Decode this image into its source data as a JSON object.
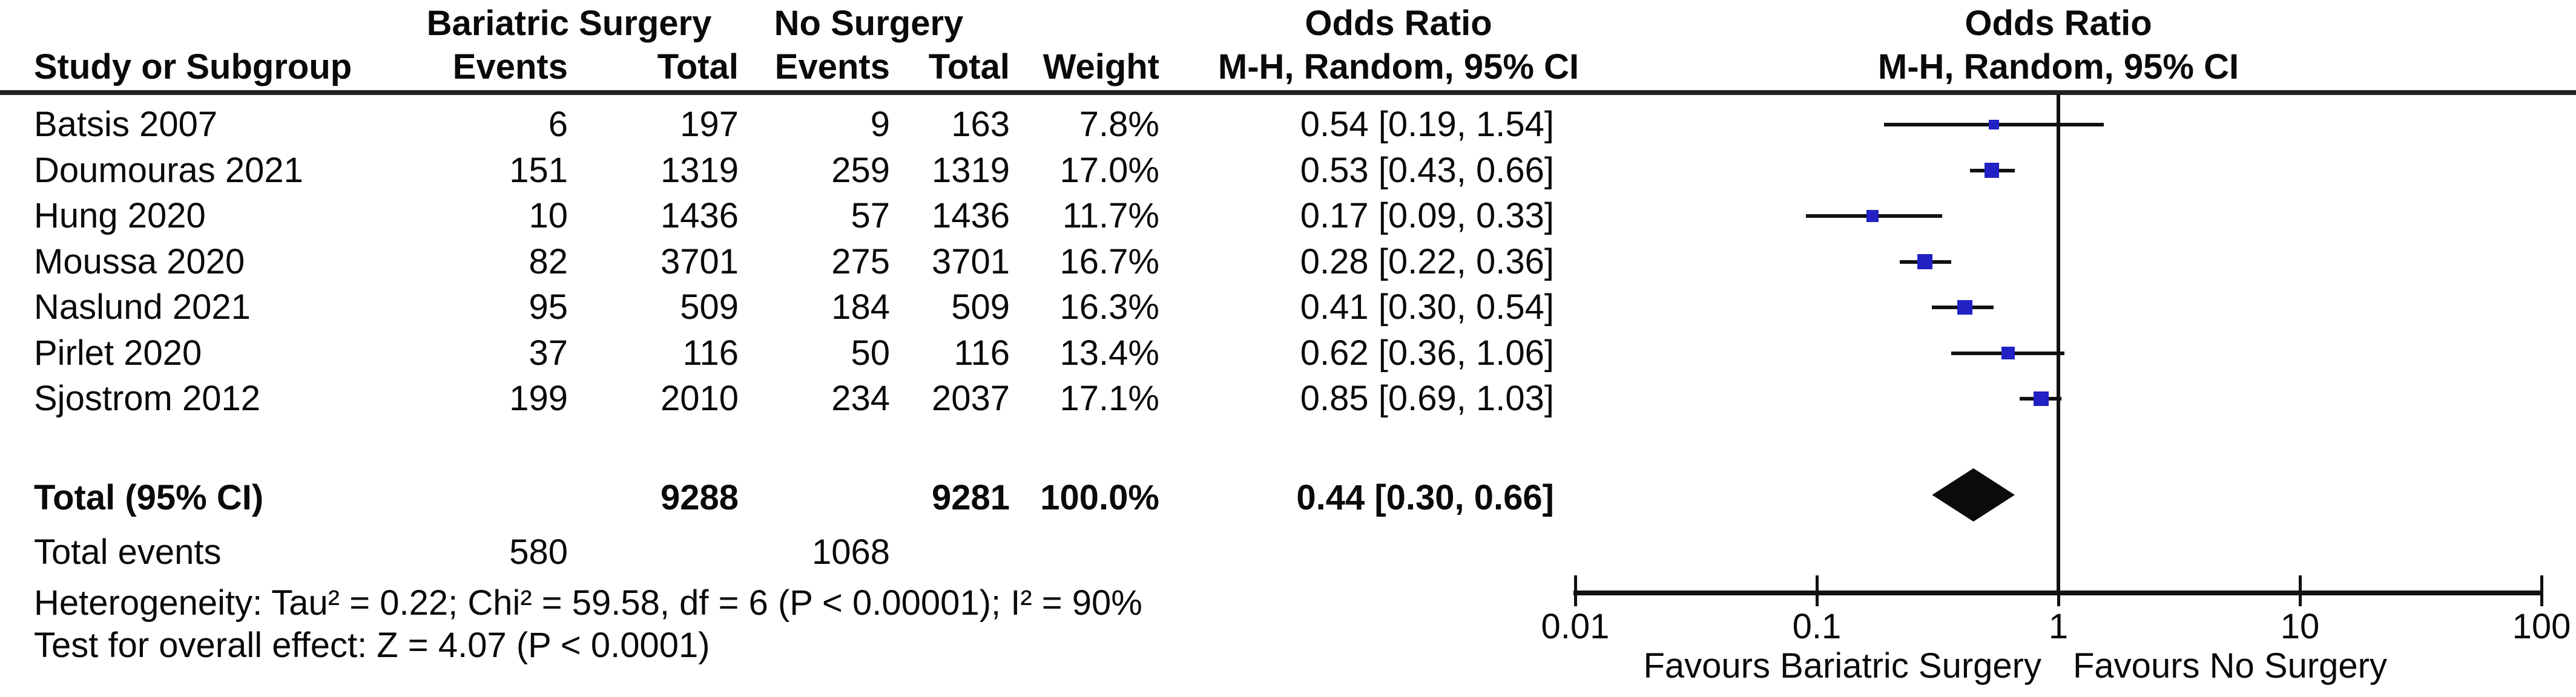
{
  "header": {
    "group_surgery": "Bariatric Surgery",
    "group_control": "No Surgery",
    "odds_ratio_left": "Odds Ratio",
    "odds_ratio_right": "Odds Ratio",
    "method_left": "M-H, Random, 95% CI",
    "method_right": "M-H, Random, 95% CI",
    "study": "Study or Subgroup",
    "events": "Events",
    "total": "Total",
    "weight": "Weight"
  },
  "footer": {
    "total_events_label": "Total events",
    "surgery_total_events": "580",
    "control_total_events": "1068",
    "heterogeneity": "Heterogeneity: Tau² = 0.22; Chi² = 59.58, df = 6 (P < 0.00001); I² = 90%",
    "overall_effect": "Test for overall effect: Z = 4.07 (P < 0.0001)"
  },
  "axis": {
    "ticks": [
      {
        "value": 0.01,
        "label": "0.01"
      },
      {
        "value": 0.1,
        "label": "0.1"
      },
      {
        "value": 1,
        "label": "1"
      },
      {
        "value": 10,
        "label": "10"
      },
      {
        "value": 100,
        "label": "100"
      }
    ],
    "favours_left": "Favours Bariatric Surgery",
    "favours_right": "Favours No Surgery"
  },
  "colors": {
    "marker_blue": "#2121C4",
    "diamond_black": "#0b0b0b",
    "line_black": "#111111"
  },
  "chart_data": {
    "type": "scatter",
    "variant": "forest_plot",
    "effect_measure": "Odds Ratio",
    "method": "M-H, Random, 95% CI",
    "x_scale": "log10",
    "x_range": [
      0.01,
      100
    ],
    "x_ticks": [
      0.01,
      0.1,
      1,
      10,
      100
    ],
    "studies": [
      {
        "name": "Batsis 2007",
        "surgery_events": "6",
        "surgery_total": "197",
        "control_events": "9",
        "control_total": "163",
        "weight_text": "7.8%",
        "weight_pct": 7.8,
        "or": 0.54,
        "ci_low": 0.19,
        "ci_high": 1.54,
        "ci_text": "0.54 [0.19, 1.54]"
      },
      {
        "name": "Doumouras 2021",
        "surgery_events": "151",
        "surgery_total": "1319",
        "control_events": "259",
        "control_total": "1319",
        "weight_text": "17.0%",
        "weight_pct": 17.0,
        "or": 0.53,
        "ci_low": 0.43,
        "ci_high": 0.66,
        "ci_text": "0.53 [0.43, 0.66]"
      },
      {
        "name": "Hung 2020",
        "surgery_events": "10",
        "surgery_total": "1436",
        "control_events": "57",
        "control_total": "1436",
        "weight_text": "11.7%",
        "weight_pct": 11.7,
        "or": 0.17,
        "ci_low": 0.09,
        "ci_high": 0.33,
        "ci_text": "0.17 [0.09, 0.33]"
      },
      {
        "name": "Moussa 2020",
        "surgery_events": "82",
        "surgery_total": "3701",
        "control_events": "275",
        "control_total": "3701",
        "weight_text": "16.7%",
        "weight_pct": 16.7,
        "or": 0.28,
        "ci_low": 0.22,
        "ci_high": 0.36,
        "ci_text": "0.28 [0.22, 0.36]"
      },
      {
        "name": "Naslund 2021",
        "surgery_events": "95",
        "surgery_total": "509",
        "control_events": "184",
        "control_total": "509",
        "weight_text": "16.3%",
        "weight_pct": 16.3,
        "or": 0.41,
        "ci_low": 0.3,
        "ci_high": 0.54,
        "ci_text": "0.41 [0.30, 0.54]"
      },
      {
        "name": "Pirlet 2020",
        "surgery_events": "37",
        "surgery_total": "116",
        "control_events": "50",
        "control_total": "116",
        "weight_text": "13.4%",
        "weight_pct": 13.4,
        "or": 0.62,
        "ci_low": 0.36,
        "ci_high": 1.06,
        "ci_text": "0.62 [0.36, 1.06]"
      },
      {
        "name": "Sjostrom 2012",
        "surgery_events": "199",
        "surgery_total": "2010",
        "control_events": "234",
        "control_total": "2037",
        "weight_text": "17.1%",
        "weight_pct": 17.1,
        "or": 0.85,
        "ci_low": 0.69,
        "ci_high": 1.03,
        "ci_text": "0.85 [0.69, 1.03]"
      }
    ],
    "total": {
      "label": "Total (95% CI)",
      "surgery_total": "9288",
      "control_total": "9281",
      "weight_text": "100.0%",
      "or": 0.44,
      "ci_low": 0.3,
      "ci_high": 0.66,
      "ci_text": "0.44 [0.30, 0.66]"
    }
  }
}
